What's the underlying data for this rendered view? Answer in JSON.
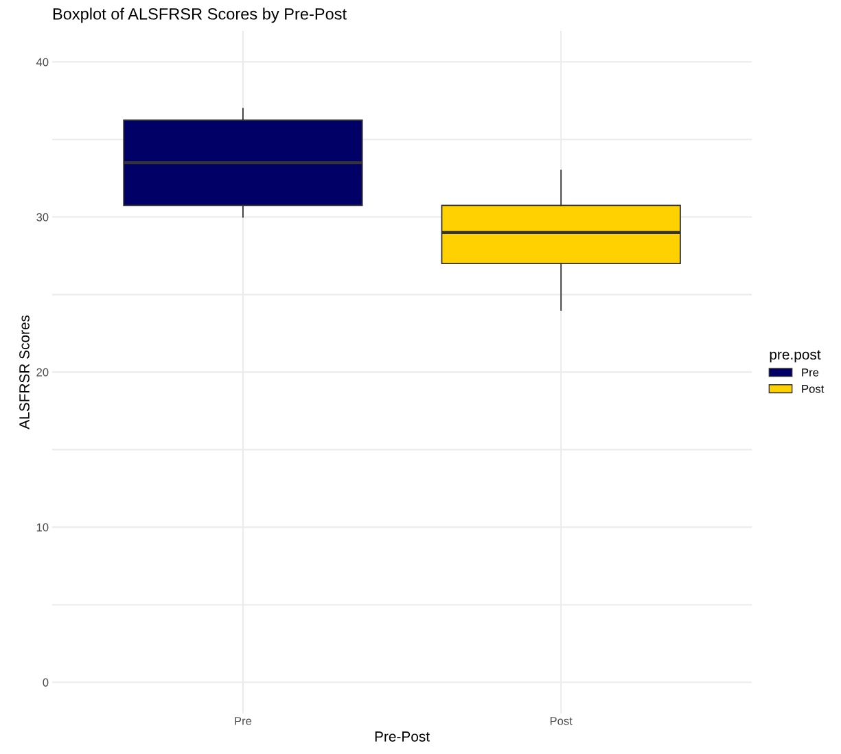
{
  "chart_data": {
    "type": "box",
    "title": "Boxplot of ALSFRSR Scores by Pre-Post",
    "xlabel": "Pre-Post",
    "ylabel": "ALSFRSR Scores",
    "legend_title": "pre.post",
    "categories": [
      "Pre",
      "Post"
    ],
    "series": [
      {
        "name": "Pre",
        "color": "#000066",
        "boxes": [
          {
            "low": 30,
            "q1": 30.75,
            "median": 33.5,
            "q3": 36.25,
            "high": 37
          },
          null
        ]
      },
      {
        "name": "Post",
        "color": "#ffd100",
        "boxes": [
          null,
          {
            "low": 24,
            "q1": 27,
            "median": 29,
            "q3": 30.75,
            "high": 33
          }
        ]
      }
    ],
    "ylim": [
      -2,
      42
    ],
    "yticks": [
      0,
      {
        "value": 5,
        "label": null
      },
      10,
      {
        "value": 15,
        "label": null
      },
      20,
      {
        "value": 25,
        "label": null
      },
      30,
      {
        "value": 35,
        "label": null
      },
      40
    ],
    "grid": true,
    "legend": "right"
  }
}
